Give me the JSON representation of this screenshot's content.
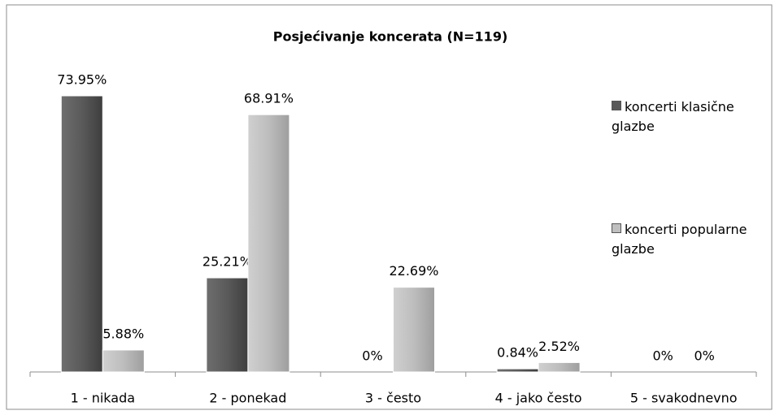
{
  "chart_data": {
    "type": "bar",
    "title": "Posjećivanje koncerata (N=119)",
    "categories": [
      "1 - nikada",
      "2 - ponekad",
      "3 - često",
      "4 - jako često",
      "5 - svakodnevno"
    ],
    "series": [
      {
        "name": "koncerti klasične glazbe",
        "color": "#595959",
        "values": [
          73.95,
          25.21,
          0,
          0.84,
          0
        ],
        "value_labels": [
          "73.95%",
          "25.21%",
          "0%",
          "0.84%",
          "0%"
        ]
      },
      {
        "name": "koncerti popularne glazbe",
        "color": "#bfbfbf",
        "values": [
          5.88,
          68.91,
          22.69,
          2.52,
          0
        ],
        "value_labels": [
          "5.88%",
          "68.91%",
          "22.69%",
          "2.52%",
          "0%"
        ]
      }
    ]
  }
}
